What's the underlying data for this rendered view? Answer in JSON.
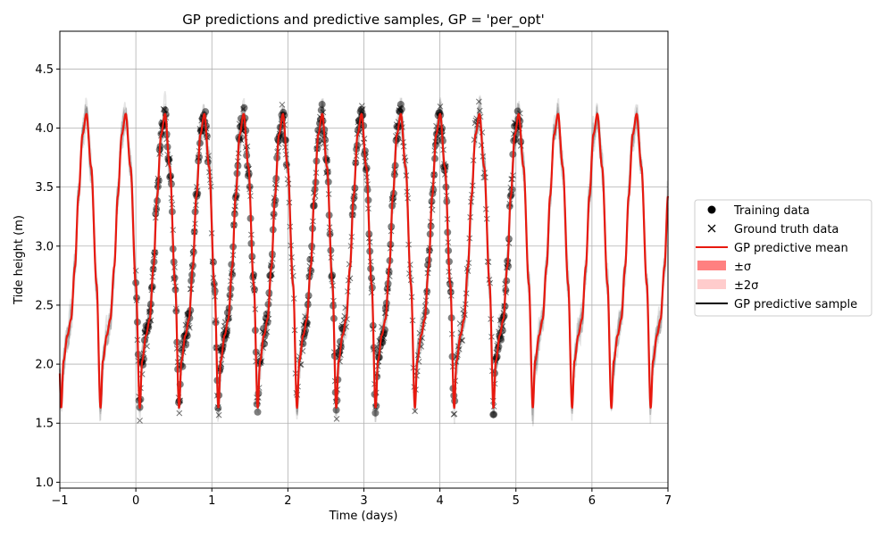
{
  "chart_data": {
    "type": "line",
    "title": "GP predictions and predictive samples, GP = 'per_opt'",
    "xlabel": "Time (days)",
    "ylabel": "Tide height (m)",
    "xlim": [
      -1,
      7
    ],
    "ylim": [
      0.95,
      4.82
    ],
    "grid": true,
    "x_ticks": [
      -1,
      0,
      1,
      2,
      3,
      4,
      5,
      6,
      7
    ],
    "y_ticks": [
      1.0,
      1.5,
      2.0,
      2.5,
      3.0,
      3.5,
      4.0,
      4.5
    ],
    "x_tick_labels": [
      "−1",
      "0",
      "1",
      "2",
      "3",
      "4",
      "5",
      "6",
      "7"
    ],
    "y_tick_labels": [
      "1.0",
      "1.5",
      "2.0",
      "2.5",
      "3.0",
      "3.5",
      "4.0",
      "4.5"
    ],
    "legend_position": "outside-right",
    "legend": [
      {
        "label": "Training data",
        "marker": "circle"
      },
      {
        "label": "Ground truth data",
        "marker": "x"
      },
      {
        "label": "GP predictive mean",
        "marker": "line",
        "color": "#e8190f"
      },
      {
        "label": "±σ",
        "marker": "patch",
        "color": "#ff8080"
      },
      {
        "label": "±2σ",
        "marker": "patch",
        "color": "#ffcccc"
      },
      {
        "label": "GP predictive sample",
        "marker": "line",
        "color": "#000000"
      }
    ],
    "series": [
      {
        "name": "GP predictive mean",
        "kind": "mean",
        "color": "#e8190f",
        "period_days": 0.517,
        "peak_time": -0.65,
        "trough_time": -0.465,
        "max_height": 4.12,
        "min_height": 1.63,
        "shoulder_height": 2.38
      },
      {
        "name": "Training data",
        "kind": "points",
        "marker": "circle",
        "sample_interval_days": 0.0104,
        "segments": [
          {
            "start": 0.0,
            "end": 0.49
          },
          {
            "start": 0.5,
            "end": 0.95
          },
          {
            "start": 1.02,
            "end": 1.64
          },
          {
            "start": 1.68,
            "end": 1.99
          },
          {
            "start": 2.2,
            "end": 2.72
          },
          {
            "start": 2.85,
            "end": 3.32
          },
          {
            "start": 3.33,
            "end": 3.5
          },
          {
            "start": 3.82,
            "end": 4.2
          },
          {
            "start": 4.7,
            "end": 5.07
          }
        ]
      },
      {
        "name": "Ground truth data",
        "kind": "points",
        "marker": "x",
        "sample_interval_days": 0.0104,
        "segments": [
          {
            "start": 0.0,
            "end": 5.07
          }
        ]
      },
      {
        "name": "GP predictive sample",
        "kind": "samples",
        "color": "#000000",
        "count": 7
      }
    ]
  }
}
